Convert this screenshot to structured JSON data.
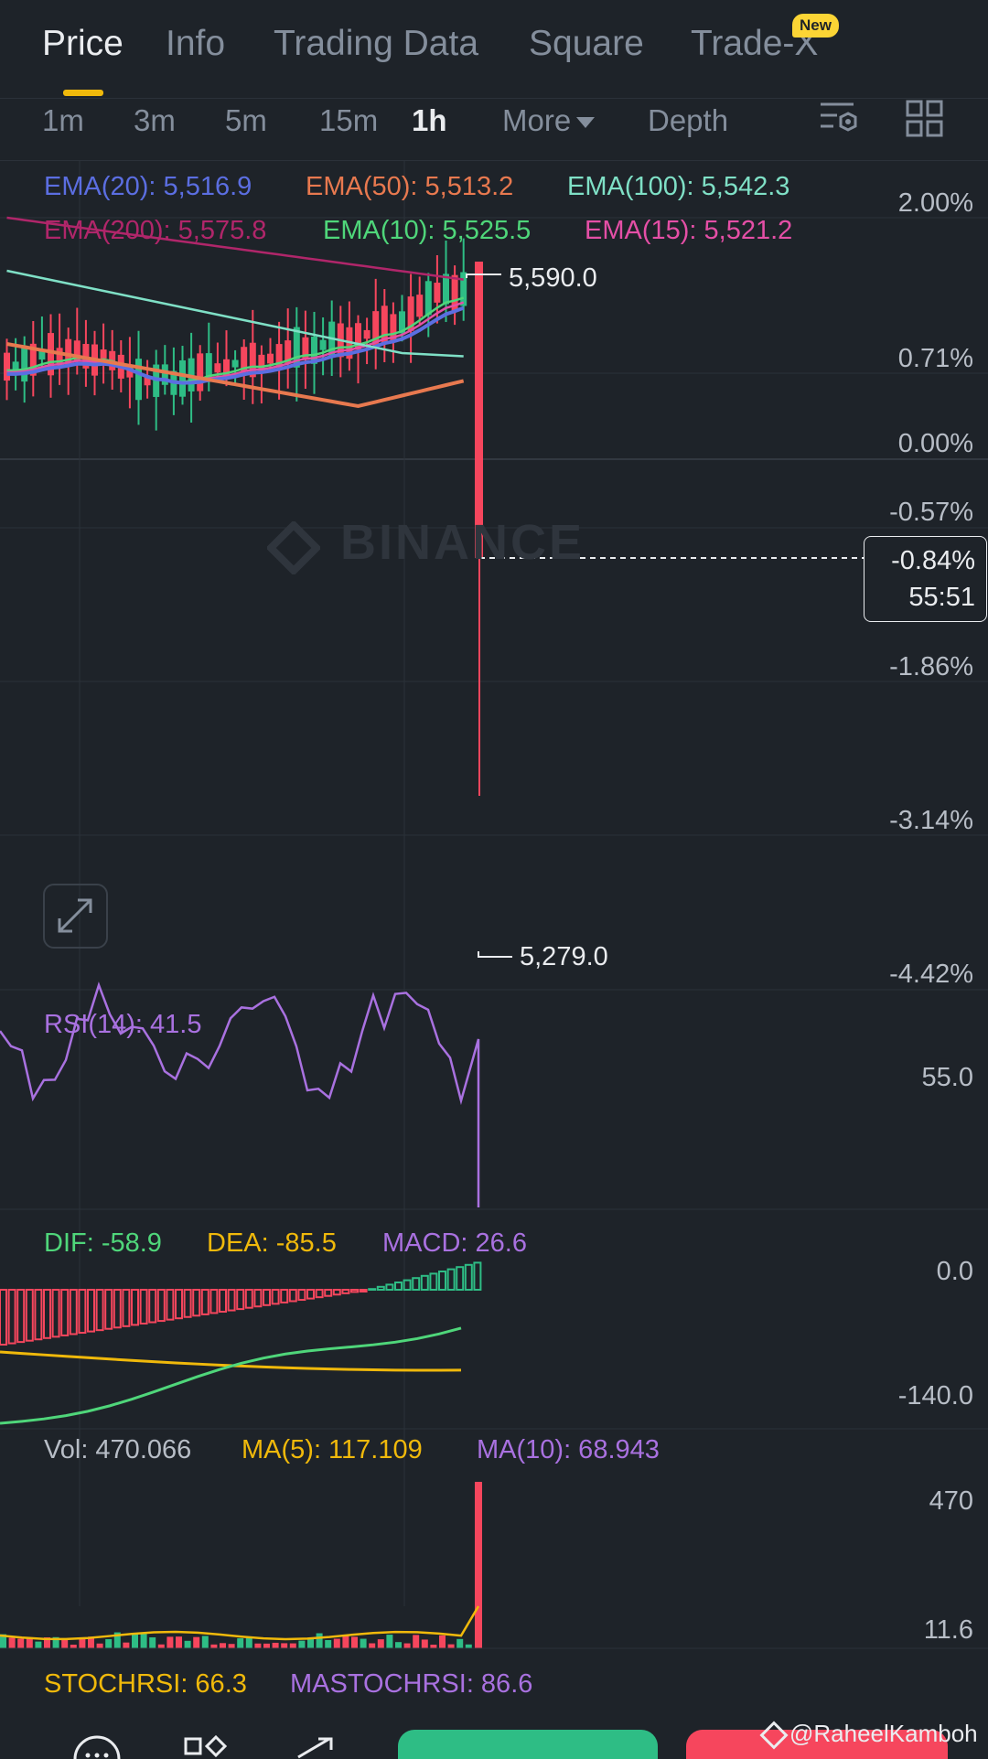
{
  "tabs": [
    {
      "label": "Price"
    },
    {
      "label": "Info"
    },
    {
      "label": "Trading Data"
    },
    {
      "label": "Square"
    },
    {
      "label": "Trade-X"
    }
  ],
  "new_badge": "New",
  "intervals": {
    "items": [
      "1m",
      "3m",
      "5m",
      "15m",
      "1h"
    ],
    "active": "1h",
    "more_label": "More",
    "depth_label": "Depth"
  },
  "ema_legend": {
    "ema20": "EMA(20): 5,516.9",
    "ema50": "EMA(50): 5,513.2",
    "ema100": "EMA(100): 5,542.3",
    "ema200": "EMA(200): 5,575.8",
    "ema10": "EMA(10): 5,525.5",
    "ema15": "EMA(15): 5,521.2"
  },
  "price_axis": [
    "2.00%",
    "0.71%",
    "0.00%",
    "-0.57%",
    "-1.86%",
    "-3.14%",
    "-4.42%"
  ],
  "current": {
    "change": "-0.84%",
    "countdown": "55:51"
  },
  "high_label": "5,590.0",
  "low_label": "5,279.0",
  "watermark": "BINANCE",
  "rsi": {
    "legend": "RSI(14): 41.5",
    "axis": "55.0"
  },
  "macd": {
    "dif": "DIF: -58.9",
    "dea": "DEA: -85.5",
    "macd": "MACD: 26.6",
    "axis_top": "0.0",
    "axis_bottom": "-140.0"
  },
  "volume": {
    "vol": "Vol: 470.066",
    "ma5": "MA(5): 117.109",
    "ma10": "MA(10): 68.943",
    "axis_top": "470",
    "axis_bottom": "11.6"
  },
  "stochrsi": {
    "stoch": "STOCHRSI: 66.3",
    "mastoch": "MASTOCHRSI: 86.6"
  },
  "credit": "@RaheelKamboh",
  "colors": {
    "up": "#2ebd85",
    "down": "#f6465d",
    "ema20": "#5b6ee1",
    "ema50": "#e8794f",
    "ema100": "#7fe0c6",
    "ema200": "#b0266a",
    "ema10": "#4fd67a",
    "ema15": "#e44fa6",
    "accent": "#f0b90b"
  },
  "icons": [
    "chart-settings-icon",
    "layout-grid-icon",
    "expand-icon",
    "more-icon",
    "markets-icon",
    "trade-icon"
  ]
}
